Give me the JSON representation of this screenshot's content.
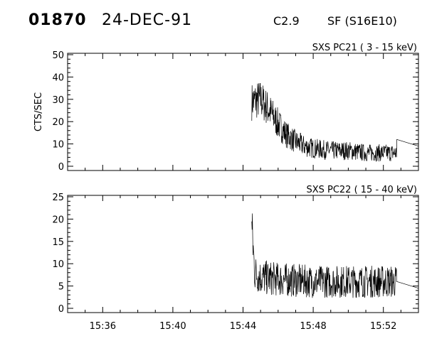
{
  "header": {
    "id": "01870",
    "date": "24-DEC-91",
    "goes_class": "C2.9",
    "location": "SF (S16E10)"
  },
  "chart_data": [
    {
      "type": "line",
      "title": "SXS PC21  (  3 - 15 keV)",
      "ylabel": "CTS/SEC",
      "xlabel": "",
      "ylim": [
        0,
        50
      ],
      "yticks": [
        0,
        10,
        20,
        30,
        40,
        50
      ],
      "xlim": [
        "15:34:00",
        "15:54:00"
      ],
      "xticks": [
        "15:36",
        "15:40",
        "15:44",
        "15:48",
        "15:52"
      ],
      "series": [
        {
          "x": [
            "15:44:30",
            "15:45:00",
            "15:45:30",
            "15:46:00",
            "15:46:30",
            "15:47:00",
            "15:47:30",
            "15:48:00",
            "15:49:00",
            "15:50:00",
            "15:51:00",
            "15:52:00",
            "15:52:45",
            "15:52:46",
            "15:54:00"
          ],
          "values": [
            29,
            30,
            25,
            19,
            14,
            11,
            9,
            8,
            7,
            7,
            6,
            6,
            6,
            12,
            9
          ]
        }
      ]
    },
    {
      "type": "line",
      "title": "SXS PC22  ( 15 - 40 keV)",
      "ylabel": "",
      "xlabel": "",
      "ylim": [
        0,
        25
      ],
      "yticks": [
        0,
        5,
        10,
        15,
        20,
        25
      ],
      "xlim": [
        "15:34:00",
        "15:54:00"
      ],
      "xticks": [
        "15:36",
        "15:40",
        "15:44",
        "15:48",
        "15:52"
      ],
      "series": [
        {
          "x": [
            "15:44:30",
            "15:44:40",
            "15:45:00",
            "15:46:00",
            "15:48:00",
            "15:50:00",
            "15:52:00",
            "15:52:45",
            "15:52:46",
            "15:54:00"
          ],
          "values": [
            18,
            8,
            7,
            6.5,
            6,
            6,
            6,
            6,
            6,
            4.5
          ]
        }
      ]
    }
  ]
}
